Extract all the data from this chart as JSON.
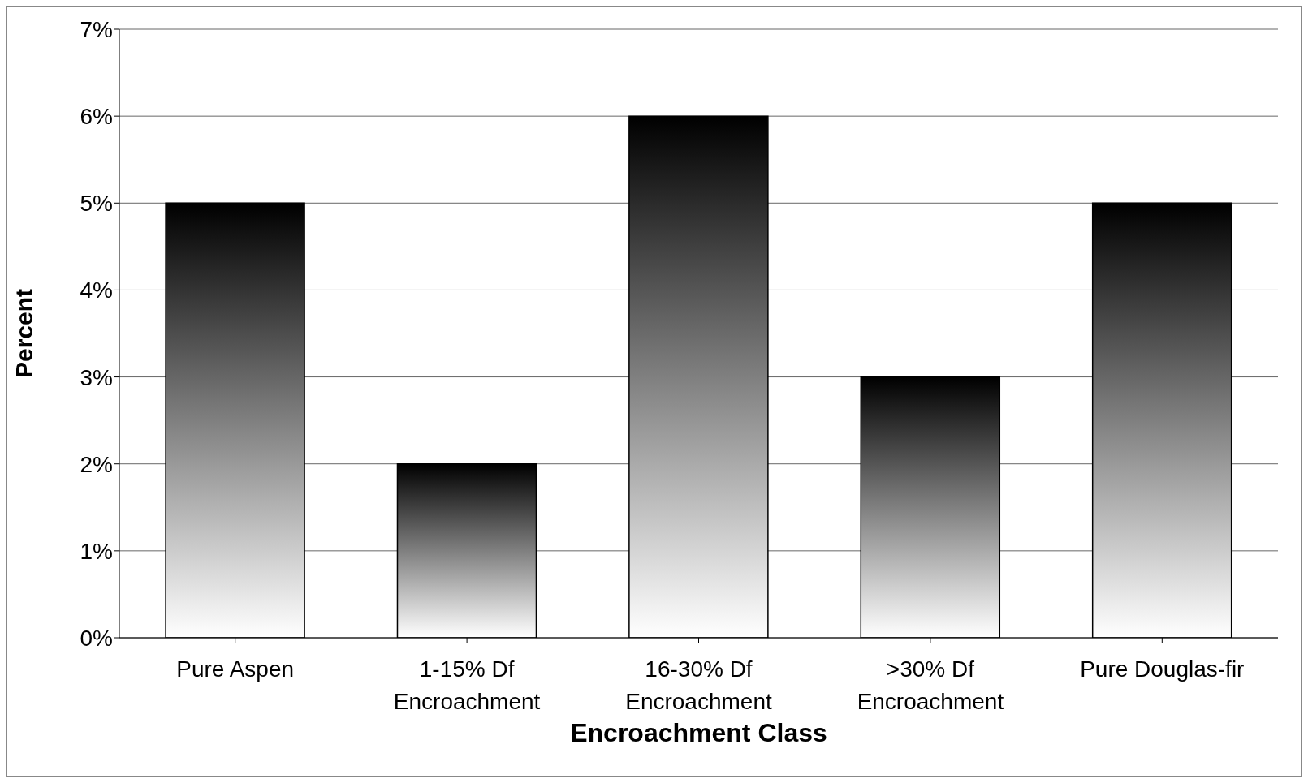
{
  "chart_data": {
    "type": "bar",
    "xlabel": "Encroachment Class",
    "ylabel": "Percent",
    "categories": [
      "Pure Aspen",
      "1-15% Df Encroachment",
      "16-30% Df Encroachment",
      ">30% Df Encroachment",
      "Pure Douglas-fir"
    ],
    "values": [
      5,
      2,
      6,
      3,
      5
    ],
    "color": "#000000",
    "ylim": [
      0,
      7
    ],
    "yticks": [
      {
        "value": 0,
        "label": "0%"
      },
      {
        "value": 1,
        "label": "1%"
      },
      {
        "value": 2,
        "label": "2%"
      },
      {
        "value": 3,
        "label": "3%"
      },
      {
        "value": 4,
        "label": "4%"
      },
      {
        "value": 5,
        "label": "5%"
      },
      {
        "value": 6,
        "label": "6%"
      },
      {
        "value": 7,
        "label": "7%"
      }
    ],
    "grid": "y"
  }
}
